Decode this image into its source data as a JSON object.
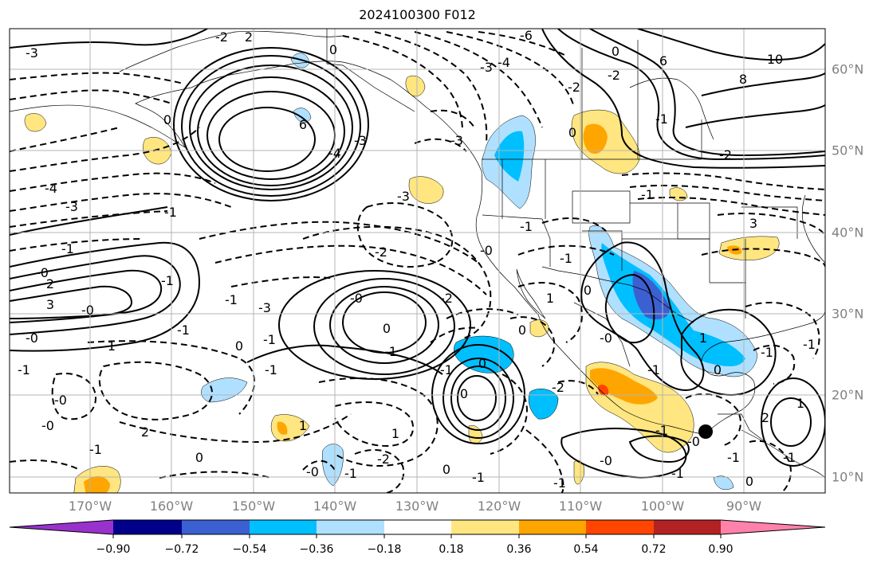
{
  "title": "2024100300 F012",
  "longitude_labels": [
    "170°W",
    "160°W",
    "150°W",
    "140°W",
    "130°W",
    "120°W",
    "110°W",
    "100°W",
    "90°W"
  ],
  "latitude_labels": [
    "60°N",
    "50°N",
    "40°N",
    "30°N",
    "20°N",
    "10°N"
  ],
  "colorbar": {
    "ticks": [
      "−0.90",
      "−0.72",
      "−0.54",
      "−0.36",
      "−0.18",
      "0.18",
      "0.36",
      "0.54",
      "0.72",
      "0.90"
    ],
    "colors": [
      "#9932cc",
      "#00008b",
      "#3c5fd2",
      "#00bfff",
      "#b0e0ff",
      "#ffffff",
      "#ffe680",
      "#ffa500",
      "#ff4500",
      "#b22222",
      "#ff82ab"
    ]
  },
  "contour_labels": [
    "-3",
    "2",
    "-2",
    "-6",
    "-3",
    "-4",
    "-2",
    "6",
    "10",
    "8",
    "0",
    "6",
    "-4",
    "-3",
    "-4",
    "-3",
    "-1",
    "0",
    "0",
    "-2",
    "-1",
    "0",
    "-2",
    "-3",
    "-3",
    "3",
    "-2",
    "-1",
    "-1",
    "-0",
    "2",
    "3",
    "-1",
    "-1",
    "-3",
    "-0",
    "0",
    "-1",
    "-1",
    "-0",
    "0",
    "1",
    "-1",
    "-1",
    "-1",
    "-0",
    "0",
    "0",
    "-2",
    "2",
    "1",
    "-2",
    "-0",
    "-1",
    "-0",
    "-1",
    "1",
    "-1",
    "1",
    "-1",
    "0",
    "-2",
    "0",
    "1",
    "-0",
    "-1",
    "-1",
    "-0",
    "-1",
    "0",
    "-0",
    "-1",
    "2",
    "-1",
    "0",
    "-1",
    "-1",
    "0",
    "-1",
    "1",
    "0",
    "-1",
    "-0",
    "-1",
    "-0"
  ],
  "colors": {
    "ocean": "#ffffff",
    "contour": "#000000",
    "grid": "#b4b4b4",
    "marker": "#000000"
  }
}
